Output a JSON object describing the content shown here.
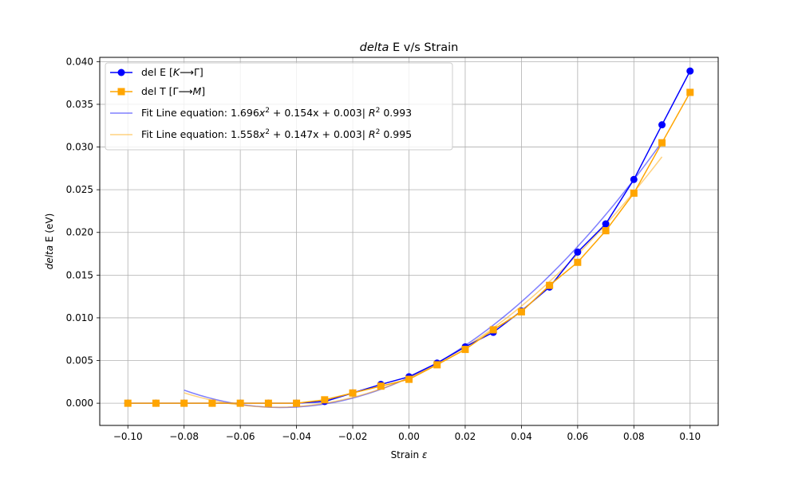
{
  "chart_data": {
    "type": "line",
    "title": "delta E v/s Strain",
    "title_italic_part": "delta",
    "title_rest": " E v/s Strain",
    "xlabel": "Strain ε",
    "xlabel_main": "Strain ",
    "xlabel_sym": "ε",
    "ylabel": "delta E (eV)",
    "ylabel_italic_part": "delta",
    "ylabel_rest": " E (eV)",
    "xlim": [
      -0.11,
      0.11
    ],
    "ylim": [
      -0.0026,
      0.0405
    ],
    "grid": true,
    "legend_position": "top-left",
    "x_ticks": [
      "−0.10",
      "−0.08",
      "−0.06",
      "−0.04",
      "−0.02",
      "0.00",
      "0.02",
      "0.04",
      "0.06",
      "0.08",
      "0.10"
    ],
    "y_ticks": [
      "0.000",
      "0.005",
      "0.010",
      "0.015",
      "0.020",
      "0.025",
      "0.030",
      "0.035",
      "0.040"
    ],
    "x": [
      -0.1,
      -0.09,
      -0.08,
      -0.07,
      -0.06,
      -0.05,
      -0.04,
      -0.03,
      -0.02,
      -0.01,
      0.0,
      0.01,
      0.02,
      0.03,
      0.04,
      0.05,
      0.06,
      0.07,
      0.08,
      0.09,
      0.1
    ],
    "series": [
      {
        "name": "del E [K⟶Γ]",
        "label_parts": [
          "del E [",
          "K",
          "⟶Γ]"
        ],
        "color": "#0000ff",
        "marker": "circle",
        "values": [
          0.0,
          0.0,
          0.0,
          0.0,
          0.0,
          0.0,
          0.0,
          0.0002,
          0.0012,
          0.0022,
          0.0031,
          0.0047,
          0.0066,
          0.0083,
          0.0108,
          0.0136,
          0.0177,
          0.021,
          0.0262,
          0.0326,
          0.0389
        ]
      },
      {
        "name": "del T [Γ⟶M]",
        "label_parts": [
          "del T [Γ⟶",
          "M",
          "]"
        ],
        "color": "#ffa500",
        "marker": "square",
        "values": [
          0.0,
          0.0,
          0.0,
          0.0,
          0.0,
          0.0,
          0.0,
          0.0004,
          0.0012,
          0.002,
          0.0028,
          0.0045,
          0.0063,
          0.0086,
          0.0107,
          0.0138,
          0.0165,
          0.0202,
          0.0246,
          0.0305,
          0.0364
        ]
      }
    ],
    "fits": [
      {
        "name": "Fit Line equation: 1.696x² + 0.154x + 0.003| R² 0.993",
        "label_parts": [
          "Fit Line equation: 1.696",
          "x",
          "2",
          " + 0.154x + 0.003|  ",
          "R",
          "2",
          " 0.993"
        ],
        "color": "#0000ff",
        "opacity": 0.5,
        "a": 1.696,
        "b": 0.154,
        "c": 0.003,
        "x_range": [
          -0.08,
          0.09
        ]
      },
      {
        "name": "Fit Line equation: 1.558x² + 0.147x + 0.003| R² 0.995",
        "label_parts": [
          "Fit Line equation: 1.558",
          "x",
          "2",
          " + 0.147x + 0.003|  ",
          "R",
          "2",
          " 0.995"
        ],
        "color": "#ffa500",
        "opacity": 0.5,
        "a": 1.558,
        "b": 0.147,
        "c": 0.003,
        "x_range": [
          -0.08,
          0.09
        ]
      }
    ]
  }
}
